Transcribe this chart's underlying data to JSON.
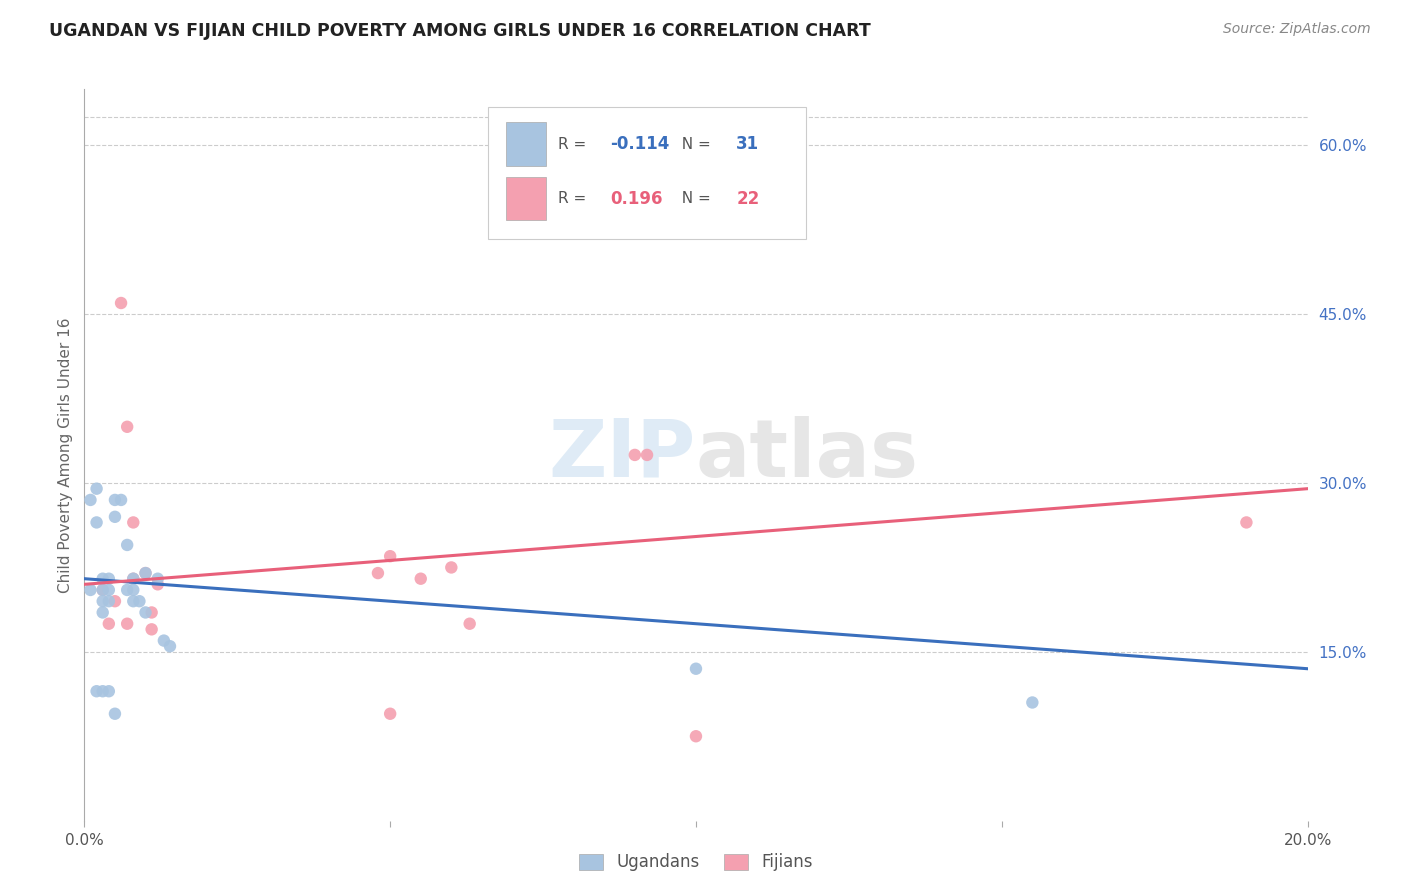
{
  "title": "UGANDAN VS FIJIAN CHILD POVERTY AMONG GIRLS UNDER 16 CORRELATION CHART",
  "source": "Source: ZipAtlas.com",
  "ylabel": "Child Poverty Among Girls Under 16",
  "xlim": [
    0.0,
    0.2
  ],
  "ylim": [
    0.0,
    0.65
  ],
  "grid_color": "#cccccc",
  "background_color": "#ffffff",
  "ugandan_color": "#a8c4e0",
  "fijian_color": "#f4a0b0",
  "ugandan_line_color": "#3a6fbd",
  "fijian_line_color": "#e8607a",
  "legend_r_ugandan": "-0.114",
  "legend_n_ugandan": "31",
  "legend_r_fijian": "0.196",
  "legend_n_fijian": "22",
  "watermark_zip": "ZIP",
  "watermark_atlas": "atlas",
  "ugandan_x": [
    0.001,
    0.001,
    0.002,
    0.002,
    0.003,
    0.003,
    0.003,
    0.003,
    0.004,
    0.004,
    0.004,
    0.005,
    0.005,
    0.006,
    0.007,
    0.007,
    0.008,
    0.008,
    0.008,
    0.009,
    0.01,
    0.01,
    0.012,
    0.013,
    0.014,
    0.002,
    0.003,
    0.004,
    0.005,
    0.1,
    0.155
  ],
  "ugandan_y": [
    0.285,
    0.205,
    0.295,
    0.265,
    0.215,
    0.205,
    0.195,
    0.185,
    0.195,
    0.205,
    0.215,
    0.285,
    0.27,
    0.285,
    0.245,
    0.205,
    0.215,
    0.205,
    0.195,
    0.195,
    0.22,
    0.185,
    0.215,
    0.16,
    0.155,
    0.115,
    0.115,
    0.115,
    0.095,
    0.135,
    0.105
  ],
  "fijian_x": [
    0.003,
    0.004,
    0.005,
    0.007,
    0.007,
    0.008,
    0.008,
    0.01,
    0.011,
    0.011,
    0.012,
    0.048,
    0.05,
    0.055,
    0.06,
    0.063,
    0.09,
    0.092,
    0.1,
    0.19,
    0.006,
    0.05
  ],
  "fijian_y": [
    0.205,
    0.175,
    0.195,
    0.35,
    0.175,
    0.265,
    0.215,
    0.22,
    0.185,
    0.17,
    0.21,
    0.22,
    0.235,
    0.215,
    0.225,
    0.175,
    0.325,
    0.325,
    0.075,
    0.265,
    0.46,
    0.095
  ],
  "marker_size": 80,
  "ugandan_trend_x": [
    0.0,
    0.2
  ],
  "ugandan_trend_y": [
    0.215,
    0.135
  ],
  "fijian_trend_x": [
    0.0,
    0.2
  ],
  "fijian_trend_y": [
    0.21,
    0.295
  ],
  "yticks_right": [
    0.15,
    0.3,
    0.45,
    0.6
  ],
  "ytick_labels_right": [
    "15.0%",
    "30.0%",
    "45.0%",
    "60.0%"
  ],
  "xticks": [
    0.0,
    0.05,
    0.1,
    0.15,
    0.2
  ],
  "xtick_labels": [
    "0.0%",
    "",
    "",
    "",
    "20.0%"
  ]
}
